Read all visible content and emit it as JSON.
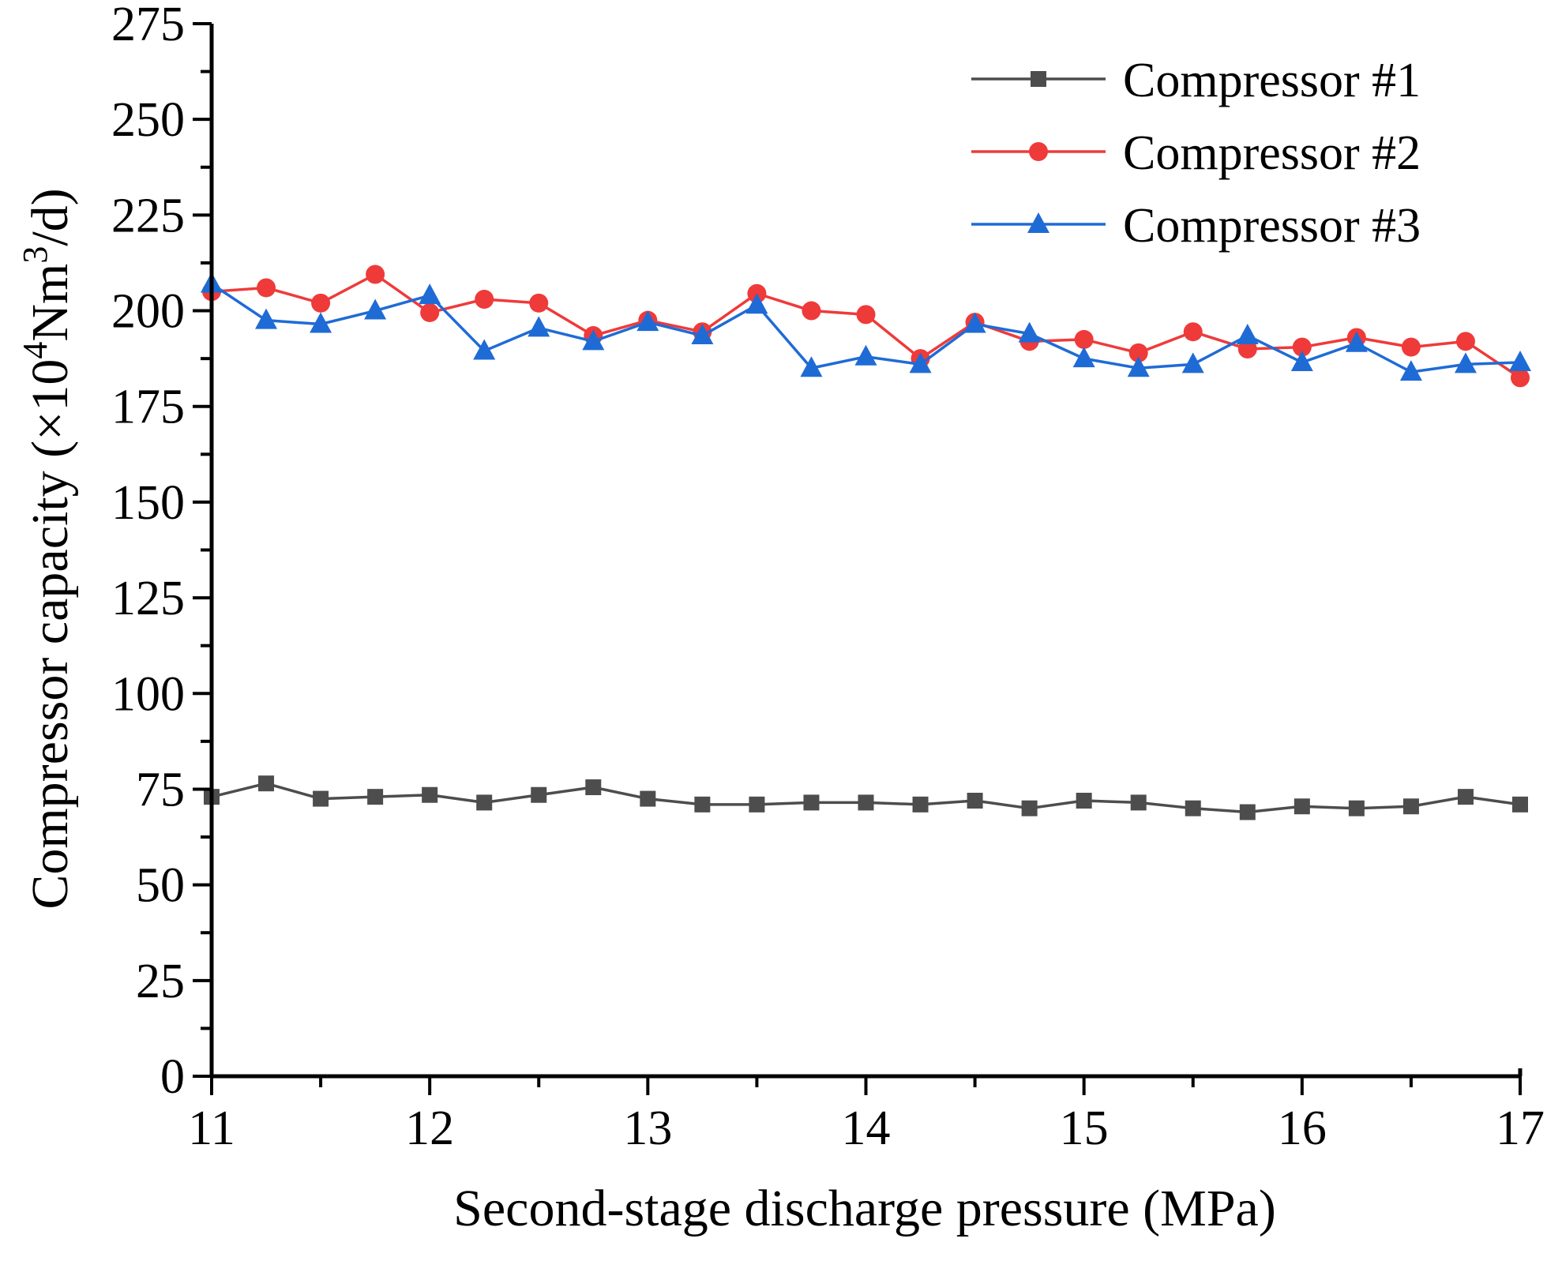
{
  "chart_data": {
    "type": "line",
    "xlabel": "Second-stage discharge pressure (MPa)",
    "ylabel_main": "Compressor capacity (×10",
    "ylabel_sup1": "4",
    "ylabel_mid": "Nm",
    "ylabel_sup2": "3",
    "ylabel_end": "/d)",
    "xlim": [
      11,
      17
    ],
    "ylim": [
      0,
      275
    ],
    "x_ticks": [
      11,
      12,
      13,
      14,
      15,
      16,
      17
    ],
    "y_ticks": [
      0,
      25,
      50,
      75,
      100,
      125,
      150,
      175,
      200,
      225,
      250,
      275
    ],
    "grid": false,
    "legend_position": "top-right",
    "x": [
      11,
      11.25,
      11.5,
      11.75,
      12,
      12.25,
      12.5,
      12.75,
      13,
      13.25,
      13.5,
      13.75,
      14,
      14.25,
      14.5,
      14.75,
      15,
      15.25,
      15.5,
      15.75,
      16,
      16.25,
      16.5,
      16.75,
      17
    ],
    "series": [
      {
        "name": "Compressor #1",
        "color": "#4d4d4d",
        "marker": "square",
        "values": [
          73,
          76.5,
          72.5,
          73,
          73.5,
          71.5,
          73.5,
          75.5,
          72.5,
          71,
          71,
          71.5,
          71.5,
          71,
          72,
          70,
          72,
          71.5,
          70,
          69,
          70.5,
          70,
          70.5,
          73,
          71
        ]
      },
      {
        "name": "Compressor #2",
        "color": "#ef3a3a",
        "marker": "circle",
        "values": [
          205,
          206,
          202,
          209.5,
          199.5,
          203,
          202,
          193.5,
          197.5,
          194.5,
          204.5,
          200,
          199,
          187.5,
          197,
          192,
          192.5,
          189,
          194.5,
          190,
          190.5,
          193,
          190.5,
          192,
          182.5
        ]
      },
      {
        "name": "Compressor #3",
        "color": "#1f6bd6",
        "marker": "triangle",
        "values": [
          207,
          197.5,
          196.5,
          200,
          204,
          189.5,
          195.5,
          192,
          197,
          193.5,
          201.5,
          185,
          188,
          186,
          196.5,
          194,
          187.5,
          185,
          186,
          193.5,
          186.5,
          191.5,
          184,
          186,
          186.5
        ]
      }
    ]
  }
}
